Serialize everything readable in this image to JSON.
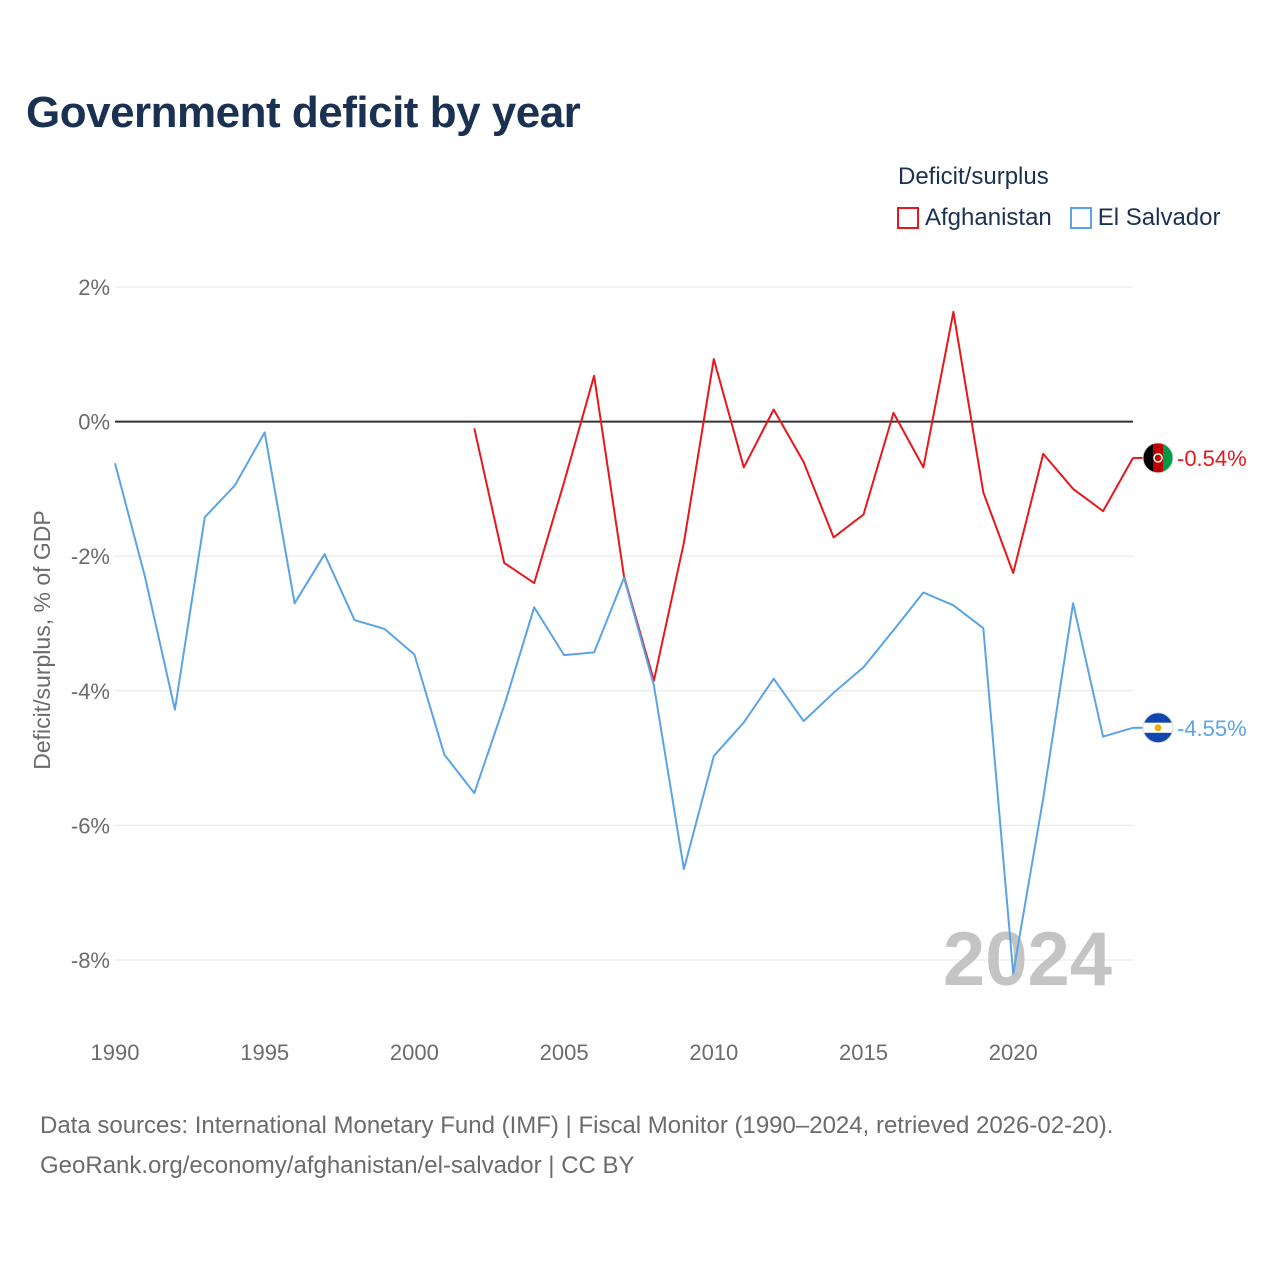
{
  "title": "Government deficit by year",
  "legend": {
    "title": "Deficit/surplus",
    "items": [
      {
        "label": "Afghanistan",
        "color": "#e8171c"
      },
      {
        "label": "El Salvador",
        "color": "#5aa4e6"
      }
    ]
  },
  "footer": {
    "line1": "Data sources: International Monetary Fund (IMF) | Fiscal Monitor (1990–2024, retrieved 2026-02-20).",
    "line2": "GeoRank.org/economy/afghanistan/el-salvador | CC BY"
  },
  "chart_data": {
    "type": "line",
    "title": "Government deficit by year",
    "xlabel": "",
    "ylabel": "Deficit/surplus, % of GDP",
    "xlim": [
      1990,
      2024
    ],
    "ylim": [
      -9,
      2
    ],
    "x_ticks": [
      1990,
      1995,
      2000,
      2005,
      2010,
      2015,
      2020
    ],
    "y_ticks": [
      {
        "value": 2,
        "label": "2%"
      },
      {
        "value": 0,
        "label": "0%"
      },
      {
        "value": -2,
        "label": "-2%"
      },
      {
        "value": -4,
        "label": "-4%"
      },
      {
        "value": -6,
        "label": "-6%"
      },
      {
        "value": -8,
        "label": "-8%"
      }
    ],
    "year_watermark": "2024",
    "series": [
      {
        "name": "Afghanistan",
        "color": "#e8171c",
        "end_label": "-0.54%",
        "flag_icon": "afghanistan-flag-icon",
        "x": [
          2002,
          2003,
          2004,
          2005,
          2006,
          2007,
          2008,
          2009,
          2010,
          2011,
          2012,
          2013,
          2014,
          2015,
          2016,
          2017,
          2018,
          2019,
          2020,
          2021,
          2022,
          2023,
          2024
        ],
        "values": [
          -0.1,
          -2.1,
          -2.4,
          -0.9,
          0.68,
          -2.3,
          -3.85,
          -1.8,
          0.93,
          -0.68,
          0.18,
          -0.6,
          -1.72,
          -1.38,
          0.13,
          -0.68,
          1.63,
          -1.05,
          -2.25,
          -0.48,
          -1.0,
          -1.33,
          -0.54
        ]
      },
      {
        "name": "El Salvador",
        "color": "#5aa4e6",
        "end_label": "-4.55%",
        "flag_icon": "el-salvador-flag-icon",
        "x": [
          1990,
          1991,
          1992,
          1993,
          1994,
          1995,
          1996,
          1997,
          1998,
          1999,
          2000,
          2001,
          2002,
          2003,
          2004,
          2005,
          2006,
          2007,
          2008,
          2009,
          2010,
          2011,
          2012,
          2013,
          2014,
          2015,
          2016,
          2017,
          2018,
          2019,
          2020,
          2021,
          2022,
          2023,
          2024
        ],
        "values": [
          -0.62,
          -2.3,
          -4.28,
          -1.42,
          -0.95,
          -0.16,
          -2.7,
          -1.97,
          -2.95,
          -3.08,
          -3.46,
          -4.95,
          -5.52,
          -4.22,
          -2.76,
          -3.47,
          -3.43,
          -2.32,
          -3.92,
          -6.65,
          -4.97,
          -4.47,
          -3.82,
          -4.45,
          -4.03,
          -3.65,
          -3.1,
          -2.54,
          -2.73,
          -3.07,
          -8.2,
          -5.6,
          -2.7,
          -4.68,
          -4.55
        ]
      }
    ]
  }
}
